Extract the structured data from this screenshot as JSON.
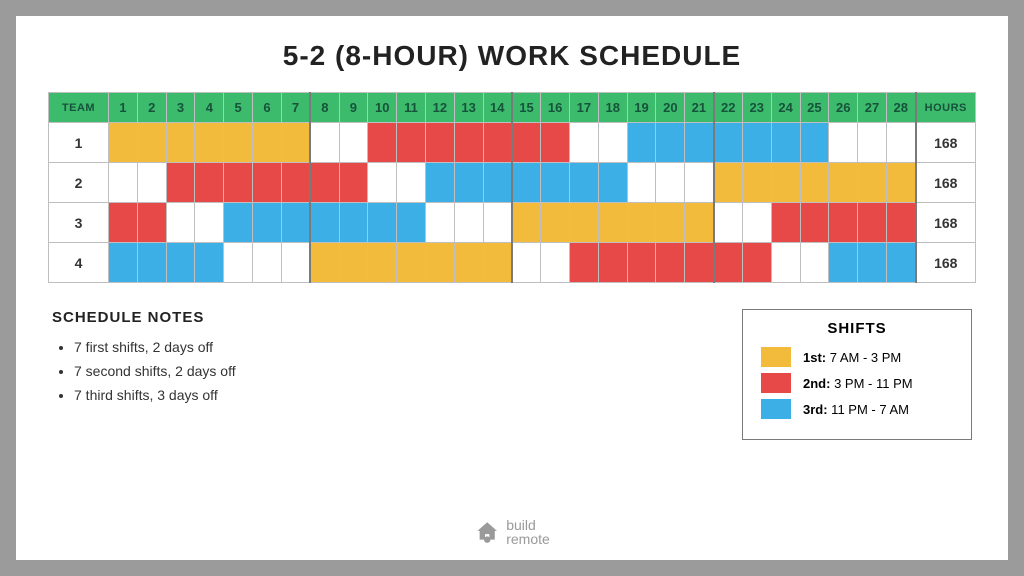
{
  "title": "5-2 (8-HOUR) WORK SCHEDULE",
  "headers": {
    "team": "TEAM",
    "hours": "HOURS",
    "header_bg": "#3cbb6d",
    "header_text": "#17523a"
  },
  "days": 28,
  "week_starts": [
    1,
    8,
    15,
    22
  ],
  "shift_colors": {
    "1": "#f3bb3c",
    "2": "#e74848",
    "3": "#3cafe6",
    "off": "#ffffff"
  },
  "cell_border": "#bfbfbf",
  "week_divider": "#7a7a7a",
  "teams": [
    {
      "name": "1",
      "hours": "168",
      "days": [
        "1",
        "1",
        "1",
        "1",
        "1",
        "1",
        "1",
        "off",
        "off",
        "2",
        "2",
        "2",
        "2",
        "2",
        "2",
        "2",
        "off",
        "off",
        "3",
        "3",
        "3",
        "3",
        "3",
        "3",
        "3",
        "off",
        "off",
        "off"
      ]
    },
    {
      "name": "2",
      "hours": "168",
      "days": [
        "off",
        "off",
        "2",
        "2",
        "2",
        "2",
        "2",
        "2",
        "2",
        "off",
        "off",
        "3",
        "3",
        "3",
        "3",
        "3",
        "3",
        "3",
        "off",
        "off",
        "off",
        "1",
        "1",
        "1",
        "1",
        "1",
        "1",
        "1"
      ]
    },
    {
      "name": "3",
      "hours": "168",
      "days": [
        "2",
        "2",
        "off",
        "off",
        "3",
        "3",
        "3",
        "3",
        "3",
        "3",
        "3",
        "off",
        "off",
        "off",
        "1",
        "1",
        "1",
        "1",
        "1",
        "1",
        "1",
        "off",
        "off",
        "2",
        "2",
        "2",
        "2",
        "2"
      ]
    },
    {
      "name": "4",
      "hours": "168",
      "days": [
        "3",
        "3",
        "3",
        "3",
        "off",
        "off",
        "off",
        "1",
        "1",
        "1",
        "1",
        "1",
        "1",
        "1",
        "off",
        "off",
        "2",
        "2",
        "2",
        "2",
        "2",
        "2",
        "2",
        "off",
        "off",
        "3",
        "3",
        "3"
      ]
    }
  ],
  "notes": {
    "title": "SCHEDULE NOTES",
    "items": [
      "7 first shifts, 2 days off",
      "7 second shifts, 2 days off",
      "7 third shifts, 3 days off"
    ]
  },
  "legend": {
    "title": "SHIFTS",
    "rows": [
      {
        "label_bold": "1st:",
        "label_rest": " 7 AM - 3 PM",
        "key": "1"
      },
      {
        "label_bold": "2nd:",
        "label_rest": " 3 PM - 11 PM",
        "key": "2"
      },
      {
        "label_bold": "3rd:",
        "label_rest": " 11 PM - 7 AM",
        "key": "3"
      }
    ]
  },
  "logo": {
    "line1": "build",
    "line2": "remote"
  }
}
